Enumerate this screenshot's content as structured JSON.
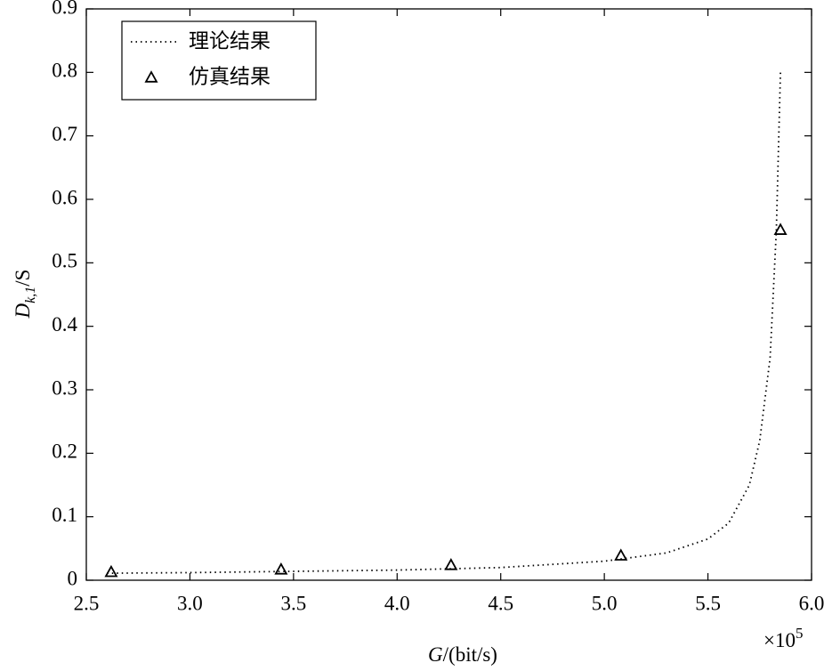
{
  "chart_data": {
    "type": "line",
    "xlabel": {
      "italic": "G",
      "rest": "/(bit/s)"
    },
    "ylabel": {
      "main": "D",
      "sub": "k,1",
      "rest": "/S"
    },
    "x_multiplier": {
      "base": "×10",
      "exp": "5"
    },
    "xlim": [
      2.5,
      6.0
    ],
    "xticks": [
      2.5,
      {
        "value": 3,
        "label": "3.0"
      },
      3.5,
      {
        "value": 4,
        "label": "4.0"
      },
      4.5,
      {
        "value": 5,
        "label": "5.0"
      },
      5.5,
      {
        "value": 6,
        "label": "6.0"
      }
    ],
    "ylim": [
      0,
      0.9
    ],
    "yticks": [
      0,
      0.1,
      0.2,
      0.3,
      0.4,
      0.5,
      0.6,
      0.7,
      0.8,
      0.9
    ],
    "legend": "upper left",
    "series": [
      {
        "name": "理论结果",
        "color": "#000000",
        "style": "dotted",
        "x": [
          2.6,
          3.0,
          3.5,
          4.0,
          4.5,
          5.0,
          5.3,
          5.5,
          5.6,
          5.7,
          5.75,
          5.8,
          5.83,
          5.85
        ],
        "values": [
          0.011,
          0.012,
          0.014,
          0.016,
          0.02,
          0.03,
          0.043,
          0.065,
          0.09,
          0.15,
          0.22,
          0.35,
          0.55,
          0.8
        ]
      },
      {
        "name": "仿真结果",
        "color": "#000000",
        "style": "triangle",
        "x": [
          2.62,
          3.44,
          4.26,
          5.08,
          5.85
        ],
        "values": [
          0.013,
          0.017,
          0.024,
          0.039,
          0.552
        ]
      }
    ]
  }
}
